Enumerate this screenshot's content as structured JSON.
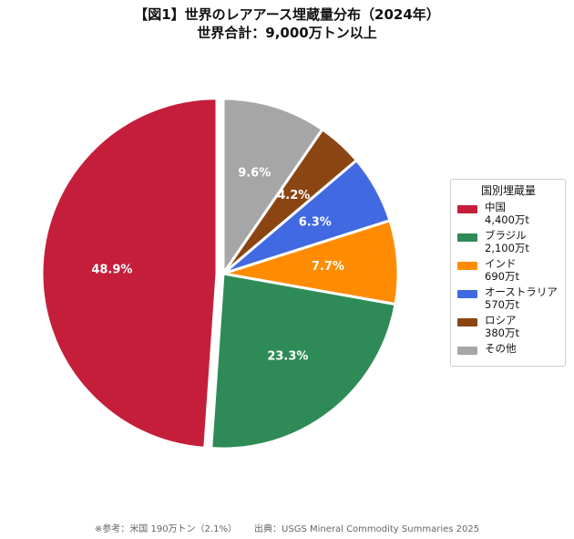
{
  "header": {
    "title": "【図1】世界のレアアース埋蔵量分布（2024年）",
    "subtitle": "世界合計：9,000万トン以上"
  },
  "legend": {
    "title": "国別埋蔵量",
    "placement": "right",
    "items": [
      {
        "name": "中国",
        "amount": "4,400万t"
      },
      {
        "name": "ブラジル",
        "amount": "2,100万t"
      },
      {
        "name": "インド",
        "amount": "690万t"
      },
      {
        "name": "オーストラリア",
        "amount": "570万t"
      },
      {
        "name": "ロシア",
        "amount": "380万t"
      },
      {
        "name": "その他",
        "amount": ""
      }
    ]
  },
  "footer": {
    "note": "※参考：米国 190万トン（2.1%）      出典：USGS Mineral Commodity Summaries 2025"
  },
  "chart_data": {
    "type": "pie",
    "title": "【図1】世界のレアアース埋蔵量分布（2024年）",
    "subtitle": "世界合計：9,000万トン以上",
    "start": "12 o'clock, clockwise from その他",
    "exploded": [
      "中国"
    ],
    "slices": [
      {
        "name": "その他",
        "value": 9.6,
        "label": "9.6%",
        "color": "#a6a6a6"
      },
      {
        "name": "ロシア",
        "value": 4.2,
        "label": "4.2%",
        "color": "#8b4513"
      },
      {
        "name": "オーストラリア",
        "value": 6.3,
        "label": "6.3%",
        "color": "#4169e1"
      },
      {
        "name": "インド",
        "value": 7.7,
        "label": "7.7%",
        "color": "#ff8c00"
      },
      {
        "name": "ブラジル",
        "value": 23.3,
        "label": "23.3%",
        "color": "#2e8b57"
      },
      {
        "name": "中国",
        "value": 48.9,
        "label": "48.9%",
        "color": "#c41e3a"
      }
    ]
  }
}
